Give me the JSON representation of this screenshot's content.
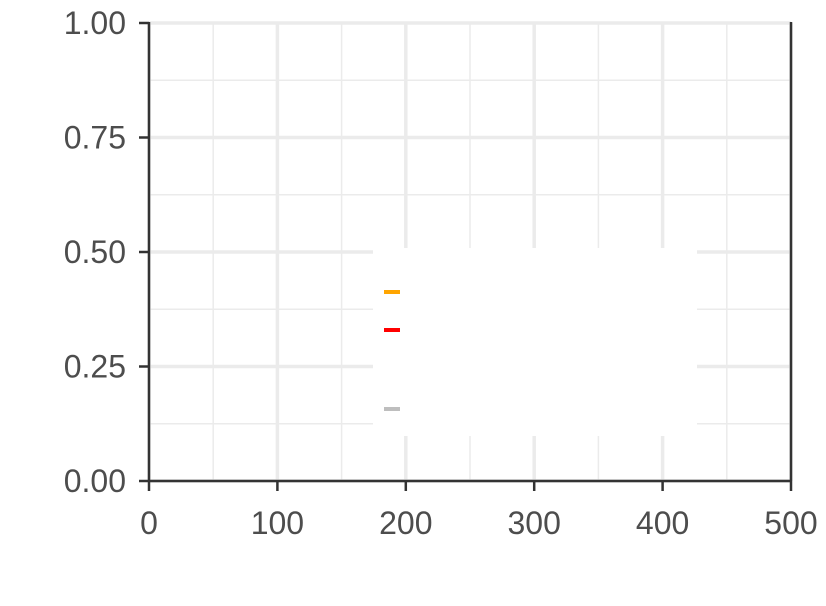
{
  "chart_data": {
    "type": "line",
    "title": "",
    "xlabel": "",
    "ylabel": "",
    "xlim": [
      0,
      500
    ],
    "ylim": [
      0,
      1
    ],
    "x_ticks": [
      0,
      100,
      200,
      300,
      400,
      500
    ],
    "x_tick_labels": [
      "0",
      "100",
      "200",
      "300",
      "400",
      "500"
    ],
    "y_ticks": [
      0,
      0.25,
      0.5,
      0.75,
      1.0
    ],
    "y_tick_labels": [
      "0.00",
      "0.25",
      "0.50",
      "0.75",
      "1.00"
    ],
    "grid": true,
    "legend": {
      "placement": "center",
      "entries": [
        {
          "label": "",
          "color": "#ffa500"
        },
        {
          "label": "",
          "color": "#ff0000"
        },
        {
          "label": "",
          "color": "#bebebe"
        }
      ]
    },
    "series": []
  }
}
